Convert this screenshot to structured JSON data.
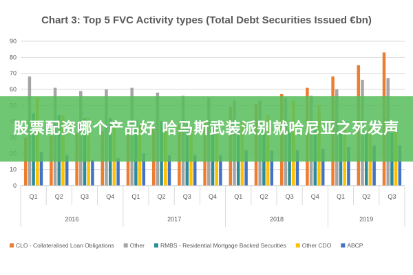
{
  "banner": {
    "text": "股票配资哪个产品好 哈马斯武装派别就哈尼亚之死发声",
    "background": "#58be5c"
  },
  "chart_data": {
    "type": "bar",
    "title": "Chart 3: Top 5 FVC Activity types (Total Debt Securities Issued €bn)",
    "xlabel": "",
    "ylabel": "",
    "ylim": [
      0,
      90
    ],
    "yticks": [
      0,
      10,
      20,
      30,
      40,
      50,
      60,
      70,
      80,
      90
    ],
    "grid": true,
    "legend_position": "bottom",
    "years": [
      {
        "label": "2016",
        "quarters": [
          "Q1",
          "Q2",
          "Q3",
          "Q4"
        ]
      },
      {
        "label": "2017",
        "quarters": [
          "Q1",
          "Q2",
          "Q3",
          "Q4"
        ]
      },
      {
        "label": "2018",
        "quarters": [
          "Q1",
          "Q2",
          "Q3",
          "Q4"
        ]
      },
      {
        "label": "2019",
        "quarters": [
          "Q1",
          "Q2",
          "Q3"
        ]
      }
    ],
    "categories": [
      "2016 Q1",
      "2016 Q2",
      "2016 Q3",
      "2016 Q4",
      "2017 Q1",
      "2017 Q2",
      "2017 Q3",
      "2017 Q4",
      "2018 Q1",
      "2018 Q2",
      "2018 Q3",
      "2018 Q4",
      "2019 Q1",
      "2019 Q2",
      "2019 Q3"
    ],
    "series": [
      {
        "name": "CLO - Collateralised Loan Obligations",
        "color": "#ed7d31",
        "values": [
          30,
          31,
          33,
          34,
          36,
          37,
          38,
          40,
          49,
          51,
          57,
          61,
          68,
          75,
          83
        ]
      },
      {
        "name": "Other",
        "color": "#a5a5a5",
        "values": [
          68,
          61,
          59,
          60,
          61,
          58,
          56,
          55,
          53,
          53,
          55,
          56,
          60,
          66,
          67
        ]
      },
      {
        "name": "RMBS - Residential Mortgage Backed Securities",
        "color": "#2e8b9a",
        "values": [
          45,
          44,
          42,
          42,
          41,
          40,
          38,
          37,
          36,
          36,
          35,
          35,
          33,
          33,
          33
        ]
      },
      {
        "name": "Other CDO",
        "color": "#ffc000",
        "values": [
          55,
          44,
          42,
          40,
          38,
          37,
          36,
          35,
          40,
          44,
          53,
          50,
          37,
          36,
          37
        ]
      },
      {
        "name": "ABCP",
        "color": "#4472c4",
        "values": [
          21,
          19,
          16,
          17,
          20,
          19,
          19,
          19,
          22,
          22,
          22,
          23,
          24,
          25,
          25
        ]
      }
    ]
  }
}
